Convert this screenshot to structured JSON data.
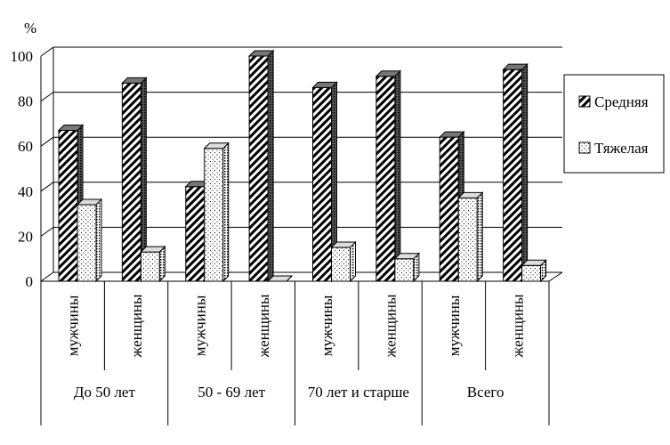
{
  "chart_data": {
    "type": "bar",
    "unit_label": "%",
    "ylim": [
      0,
      100
    ],
    "yticks": [
      "0",
      "20",
      "40",
      "60",
      "80",
      "100"
    ],
    "groups": [
      "До 50 лет",
      "50 - 69 лет",
      "70 лет и старше",
      "Всего"
    ],
    "subcategories": [
      "мужчины",
      "женщины"
    ],
    "series": [
      {
        "name": "Средняя",
        "pattern": "diagonal-hatch",
        "values": [
          67,
          88,
          42,
          100,
          86,
          91,
          64,
          94
        ]
      },
      {
        "name": "Тяжелая",
        "pattern": "dots",
        "values": [
          34,
          13,
          59,
          0,
          15,
          10,
          37,
          7
        ]
      }
    ],
    "legend_position": "right",
    "grid": true
  }
}
